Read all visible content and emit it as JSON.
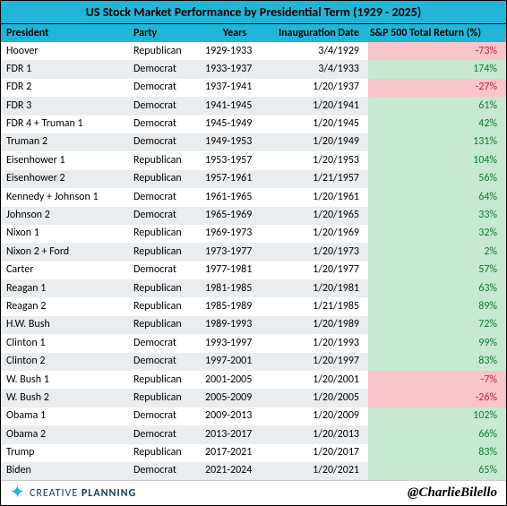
{
  "title": "US Stock Market Performance by Presidential Term (1929 - 2025)",
  "columns": [
    "President",
    "Party",
    "Years",
    "Inauguration Date",
    "S&P 500 Total Return (%)"
  ],
  "rows": [
    {
      "president": "Hoover",
      "party": "Republican",
      "years": "1929-1933",
      "inaug": "3/4/1929",
      "ret": "-73%",
      "neg": true
    },
    {
      "president": "FDR 1",
      "party": "Democrat",
      "years": "1933-1937",
      "inaug": "3/4/1933",
      "ret": "174%",
      "neg": false
    },
    {
      "president": "FDR 2",
      "party": "Democrat",
      "years": "1937-1941",
      "inaug": "1/20/1937",
      "ret": "-27%",
      "neg": true
    },
    {
      "president": "FDR 3",
      "party": "Democrat",
      "years": "1941-1945",
      "inaug": "1/20/1941",
      "ret": "61%",
      "neg": false
    },
    {
      "president": "FDR 4 + Truman 1",
      "party": "Democrat",
      "years": "1945-1949",
      "inaug": "1/20/1945",
      "ret": "42%",
      "neg": false
    },
    {
      "president": "Truman 2",
      "party": "Democrat",
      "years": "1949-1953",
      "inaug": "1/20/1949",
      "ret": "131%",
      "neg": false
    },
    {
      "president": "Eisenhower 1",
      "party": "Republican",
      "years": "1953-1957",
      "inaug": "1/20/1953",
      "ret": "104%",
      "neg": false
    },
    {
      "president": "Eisenhower 2",
      "party": "Republican",
      "years": "1957-1961",
      "inaug": "1/21/1957",
      "ret": "56%",
      "neg": false
    },
    {
      "president": "Kennedy + Johnson 1",
      "party": "Democrat",
      "years": "1961-1965",
      "inaug": "1/20/1961",
      "ret": "64%",
      "neg": false
    },
    {
      "president": "Johnson 2",
      "party": "Democrat",
      "years": "1965-1969",
      "inaug": "1/20/1965",
      "ret": "33%",
      "neg": false
    },
    {
      "president": "Nixon 1",
      "party": "Republican",
      "years": "1969-1973",
      "inaug": "1/20/1969",
      "ret": "32%",
      "neg": false
    },
    {
      "president": "Nixon 2 + Ford",
      "party": "Republican",
      "years": "1973-1977",
      "inaug": "1/20/1973",
      "ret": "2%",
      "neg": false
    },
    {
      "president": "Carter",
      "party": "Democrat",
      "years": "1977-1981",
      "inaug": "1/20/1977",
      "ret": "57%",
      "neg": false
    },
    {
      "president": "Reagan 1",
      "party": "Republican",
      "years": "1981-1985",
      "inaug": "1/20/1981",
      "ret": "63%",
      "neg": false
    },
    {
      "president": "Reagan 2",
      "party": "Republican",
      "years": "1985-1989",
      "inaug": "1/21/1985",
      "ret": "89%",
      "neg": false
    },
    {
      "president": "H.W. Bush",
      "party": "Republican",
      "years": "1989-1993",
      "inaug": "1/20/1989",
      "ret": "72%",
      "neg": false
    },
    {
      "president": "Clinton 1",
      "party": "Democrat",
      "years": "1993-1997",
      "inaug": "1/20/1993",
      "ret": "99%",
      "neg": false
    },
    {
      "president": "Clinton 2",
      "party": "Democrat",
      "years": "1997-2001",
      "inaug": "1/20/1997",
      "ret": "83%",
      "neg": false
    },
    {
      "president": "W. Bush 1",
      "party": "Republican",
      "years": "2001-2005",
      "inaug": "1/20/2001",
      "ret": "-7%",
      "neg": true
    },
    {
      "president": "W. Bush 2",
      "party": "Republican",
      "years": "2005-2009",
      "inaug": "1/20/2005",
      "ret": "-26%",
      "neg": true
    },
    {
      "president": "Obama 1",
      "party": "Democrat",
      "years": "2009-2013",
      "inaug": "1/20/2009",
      "ret": "102%",
      "neg": false
    },
    {
      "president": "Obama 2",
      "party": "Democrat",
      "years": "2013-2017",
      "inaug": "1/20/2013",
      "ret": "66%",
      "neg": false
    },
    {
      "president": "Trump",
      "party": "Republican",
      "years": "2017-2021",
      "inaug": "1/20/2017",
      "ret": "83%",
      "neg": false
    },
    {
      "president": "Biden",
      "party": "Democrat",
      "years": "2021-2024",
      "inaug": "1/20/2021",
      "ret": "65%",
      "neg": false
    }
  ],
  "brand": {
    "name_a": "CREATIVE",
    "name_b": "PLANNING"
  },
  "handle": "@CharlieBilello",
  "colors": {
    "header_bg": "#1fb6d9",
    "row_even": "#e9edf0",
    "pos_bg": "#c7e9cf",
    "pos_fg": "#0a7a2f",
    "neg_bg": "#f9c5c9",
    "neg_fg": "#c41e3a"
  }
}
